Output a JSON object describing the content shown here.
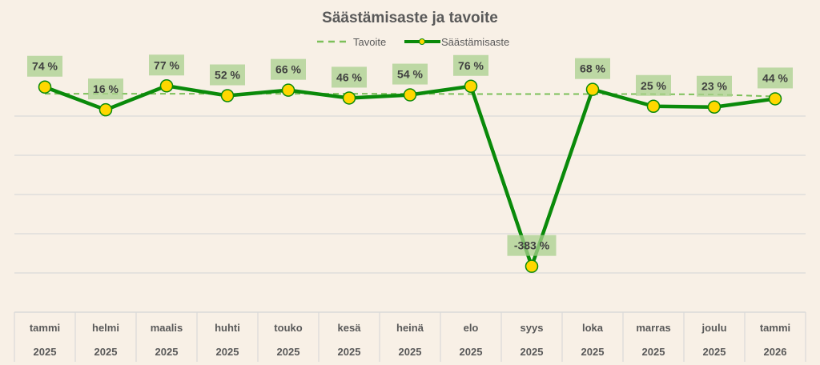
{
  "chart_data": {
    "type": "line",
    "title": "Säästämisaste ja tavoite",
    "legend_position": "top",
    "categories": [
      [
        "tammi",
        "2025"
      ],
      [
        "helmi",
        "2025"
      ],
      [
        "maalis",
        "2025"
      ],
      [
        "huhti",
        "2025"
      ],
      [
        "touko",
        "2025"
      ],
      [
        "kesä",
        "2025"
      ],
      [
        "heinä",
        "2025"
      ],
      [
        "elo",
        "2025"
      ],
      [
        "syys",
        "2025"
      ],
      [
        "loka",
        "2025"
      ],
      [
        "marras",
        "2025"
      ],
      [
        "joulu",
        "2025"
      ],
      [
        "tammi",
        "2026"
      ]
    ],
    "ylim": [
      -500,
      100
    ],
    "grid": true,
    "series": [
      {
        "name": "Tavoite",
        "style": "dashed",
        "color": "#7dc05a",
        "values": [
          57,
          57,
          57,
          57,
          57,
          57,
          57,
          56,
          56,
          56,
          56,
          55,
          50
        ]
      },
      {
        "name": "Säästämisaste",
        "style": "solid-markers",
        "color": "#0a8a0a",
        "marker_color": "#ffd700",
        "values": [
          74,
          16,
          77,
          52,
          66,
          46,
          54,
          76,
          -383,
          68,
          25,
          23,
          44
        ],
        "labels": [
          "74 %",
          "16 %",
          "77 %",
          "52 %",
          "66 %",
          "46 %",
          "54 %",
          "76 %",
          "-383 %",
          "68 %",
          "25 %",
          "23 %",
          "44 %"
        ]
      }
    ]
  }
}
